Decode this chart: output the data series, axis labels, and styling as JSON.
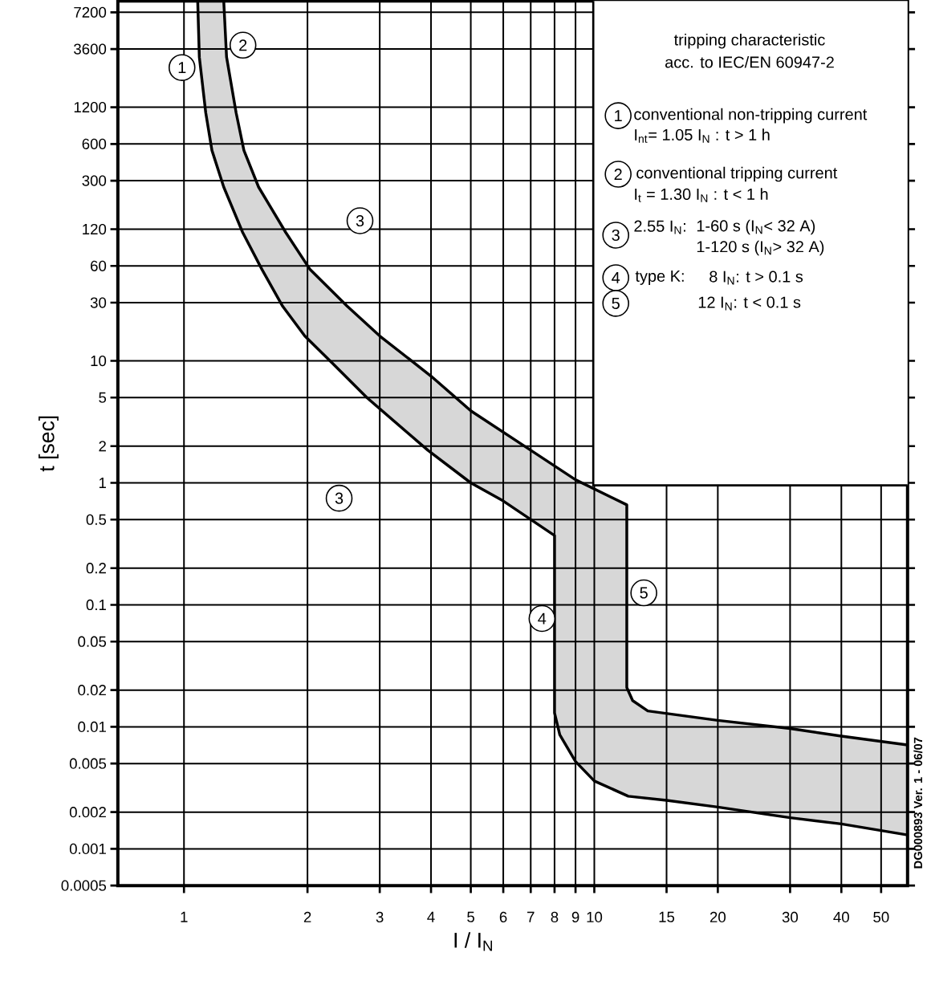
{
  "chart_data": {
    "type": "line",
    "xlabel": "I / I$_{N}$",
    "ylabel": "t [sec]",
    "log": "xy",
    "grid": true,
    "marker": "none",
    "line_style": "solid",
    "xlim": [
      0.69,
      58
    ],
    "ylim": [
      0.0005,
      8900
    ],
    "xticks": [
      1,
      2,
      3,
      4,
      5,
      6,
      7,
      8,
      9,
      10,
      15,
      20,
      30,
      40,
      50
    ],
    "yticks": [
      0.0005,
      0.001,
      0.002,
      0.005,
      0.01,
      0.02,
      0.05,
      0.1,
      0.2,
      0.5,
      1,
      2,
      5,
      10,
      30,
      60,
      120,
      300,
      600,
      1200,
      3600,
      7200
    ],
    "series": [
      {
        "color": "#000000",
        "x": [
          1.08,
          1.09,
          1.13,
          1.17,
          1.25,
          1.39,
          1.55,
          1.74,
          1.97,
          2.29,
          2.79,
          3.93,
          5,
          6,
          8,
          8,
          8.24,
          9,
          10,
          12.1,
          15,
          20,
          30,
          40,
          58
        ],
        "values": [
          8900,
          3090,
          1080,
          531,
          266,
          113,
          56,
          28,
          16,
          9.7,
          5.0,
          1.85,
          1.0,
          0.71,
          0.37,
          0.013,
          0.0086,
          0.0052,
          0.0036,
          0.0027,
          0.0025,
          0.0022,
          0.0018,
          0.0016,
          0.0013
        ]
      },
      {
        "color": "#000000",
        "x": [
          1.25,
          1.27,
          1.34,
          1.4,
          1.52,
          1.77,
          2.03,
          2.5,
          3,
          4,
          5,
          7,
          9,
          12,
          12,
          12.4,
          13.5,
          20,
          30,
          40,
          58
        ],
        "values": [
          8900,
          3090,
          1080,
          531,
          266,
          113,
          56,
          28,
          16,
          7.5,
          3.9,
          1.85,
          1.06,
          0.66,
          0.021,
          0.0164,
          0.0135,
          0.0113,
          0.0097,
          0.0084,
          0.0071
        ]
      }
    ],
    "annotations": [
      "tripping characteristic",
      "acc. to IEC/EN 60947-2",
      "1",
      "conventional non-tripping current",
      "I$_{nt}$= 1.05 I$_{N}$ : t > 1 h",
      "2",
      "conventional tripping current",
      "I$_{t}$ = 1.30 I$_{N}$ : t < 1 h",
      "3",
      "2.55 I$_{N}$:",
      "1-60 s (I$_{N}$< 32 A)",
      "1-120 s (I$_{N}$> 32 A)",
      "4",
      "type K:",
      "8 I$_{N}$: t > 0.1 s",
      "5",
      "12 I$_{N}$: t < 0.1 s",
      "DG000893 Ver. 1 - 06/07",
      "1",
      "2",
      "3",
      "3",
      "4",
      "5"
    ]
  }
}
